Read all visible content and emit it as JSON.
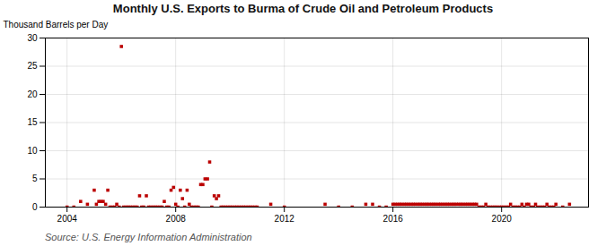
{
  "chart_data": {
    "type": "scatter",
    "title": "Monthly U.S. Exports to Burma of Crude Oil and Petroleum Products",
    "ylabel": "Thousand Barrels per Day",
    "annotations": [
      "Source: U.S. Energy Information Administration"
    ],
    "color": "#bb0000",
    "marker": "square",
    "grid": true,
    "xlim": [
      2003.2,
      2023.2
    ],
    "xticks": [
      2004,
      2008,
      2012,
      2016,
      2020
    ],
    "ylim": [
      0,
      30
    ],
    "yticks": [
      0,
      5,
      10,
      15,
      20,
      25,
      30
    ],
    "x": [
      2004.0,
      2004.25,
      2004.5,
      2004.75,
      2005.0,
      2005.08,
      2005.17,
      2005.25,
      2005.33,
      2005.42,
      2005.5,
      2005.58,
      2005.67,
      2005.75,
      2005.83,
      2005.92,
      2006.0,
      2006.08,
      2006.17,
      2006.25,
      2006.33,
      2006.42,
      2006.5,
      2006.58,
      2006.67,
      2006.75,
      2006.83,
      2006.92,
      2007.0,
      2007.08,
      2007.17,
      2007.25,
      2007.33,
      2007.42,
      2007.5,
      2007.58,
      2007.67,
      2007.75,
      2007.83,
      2007.92,
      2008.0,
      2008.08,
      2008.17,
      2008.25,
      2008.33,
      2008.42,
      2008.5,
      2008.58,
      2008.67,
      2008.75,
      2008.83,
      2008.92,
      2009.0,
      2009.08,
      2009.17,
      2009.25,
      2009.33,
      2009.42,
      2009.5,
      2009.58,
      2009.67,
      2009.75,
      2009.83,
      2009.92,
      2010.0,
      2010.08,
      2010.17,
      2010.25,
      2010.33,
      2010.42,
      2010.5,
      2010.58,
      2010.67,
      2010.75,
      2010.83,
      2010.92,
      2011.0,
      2011.5,
      2012.0,
      2013.5,
      2014.0,
      2014.5,
      2015.0,
      2015.25,
      2015.5,
      2015.75,
      2016.0,
      2016.08,
      2016.17,
      2016.25,
      2016.33,
      2016.42,
      2016.5,
      2016.58,
      2016.67,
      2016.75,
      2016.83,
      2016.92,
      2017.0,
      2017.08,
      2017.17,
      2017.25,
      2017.33,
      2017.42,
      2017.5,
      2017.58,
      2017.67,
      2017.75,
      2017.83,
      2017.92,
      2018.0,
      2018.08,
      2018.17,
      2018.25,
      2018.33,
      2018.42,
      2018.5,
      2018.58,
      2018.67,
      2018.75,
      2018.83,
      2018.92,
      2019.0,
      2019.08,
      2019.17,
      2019.25,
      2019.33,
      2019.42,
      2019.5,
      2019.58,
      2019.67,
      2019.75,
      2019.83,
      2019.92,
      2020.0,
      2020.08,
      2020.17,
      2020.25,
      2020.33,
      2020.42,
      2020.5,
      2020.58,
      2020.67,
      2020.75,
      2020.83,
      2020.92,
      2021.0,
      2021.08,
      2021.17,
      2021.25,
      2021.33,
      2021.42,
      2021.5,
      2021.58,
      2021.67,
      2021.75,
      2021.83,
      2021.92,
      2022.0,
      2022.25,
      2022.5
    ],
    "values": [
      0.0,
      0.0,
      1.0,
      0.5,
      3.0,
      0.5,
      1.0,
      1.0,
      1.0,
      0.5,
      3.0,
      0.0,
      0.0,
      0.0,
      0.5,
      0.0,
      28.5,
      0.0,
      0.0,
      0.0,
      0.0,
      0.0,
      0.0,
      0.0,
      2.0,
      0.0,
      0.0,
      2.0,
      0.0,
      0.0,
      0.0,
      0.0,
      0.0,
      0.0,
      0.0,
      1.0,
      0.0,
      0.0,
      3.0,
      3.5,
      0.5,
      0.0,
      3.0,
      1.5,
      0.0,
      3.0,
      0.5,
      0.0,
      0.0,
      0.0,
      0.0,
      4.0,
      4.0,
      5.0,
      5.0,
      8.0,
      0.0,
      2.0,
      1.5,
      2.0,
      0.0,
      0.0,
      0.0,
      0.0,
      0.0,
      0.0,
      0.0,
      0.0,
      0.0,
      0.0,
      0.0,
      0.0,
      0.0,
      0.0,
      0.0,
      0.0,
      0.0,
      0.5,
      0.0,
      0.5,
      0.0,
      0.0,
      0.5,
      0.5,
      0.0,
      0.0,
      0.5,
      0.5,
      0.5,
      0.5,
      0.5,
      0.5,
      0.5,
      0.5,
      0.5,
      0.5,
      0.5,
      0.5,
      0.5,
      0.5,
      0.5,
      0.5,
      0.5,
      0.5,
      0.5,
      0.5,
      0.5,
      0.5,
      0.5,
      0.5,
      0.5,
      0.5,
      0.5,
      0.5,
      0.5,
      0.5,
      0.5,
      0.5,
      0.5,
      0.5,
      0.5,
      0.5,
      0.5,
      0.5,
      0.0,
      0.0,
      0.0,
      0.5,
      0.0,
      0.0,
      0.0,
      0.0,
      0.0,
      0.0,
      0.0,
      0.0,
      0.0,
      0.0,
      0.5,
      0.0,
      0.0,
      0.0,
      0.0,
      0.5,
      0.0,
      0.5,
      0.5,
      0.0,
      0.0,
      0.5,
      0.0,
      0.0,
      0.0,
      0.0,
      0.5,
      0.0,
      0.0,
      0.0,
      0.5,
      0.0,
      0.5
    ]
  }
}
